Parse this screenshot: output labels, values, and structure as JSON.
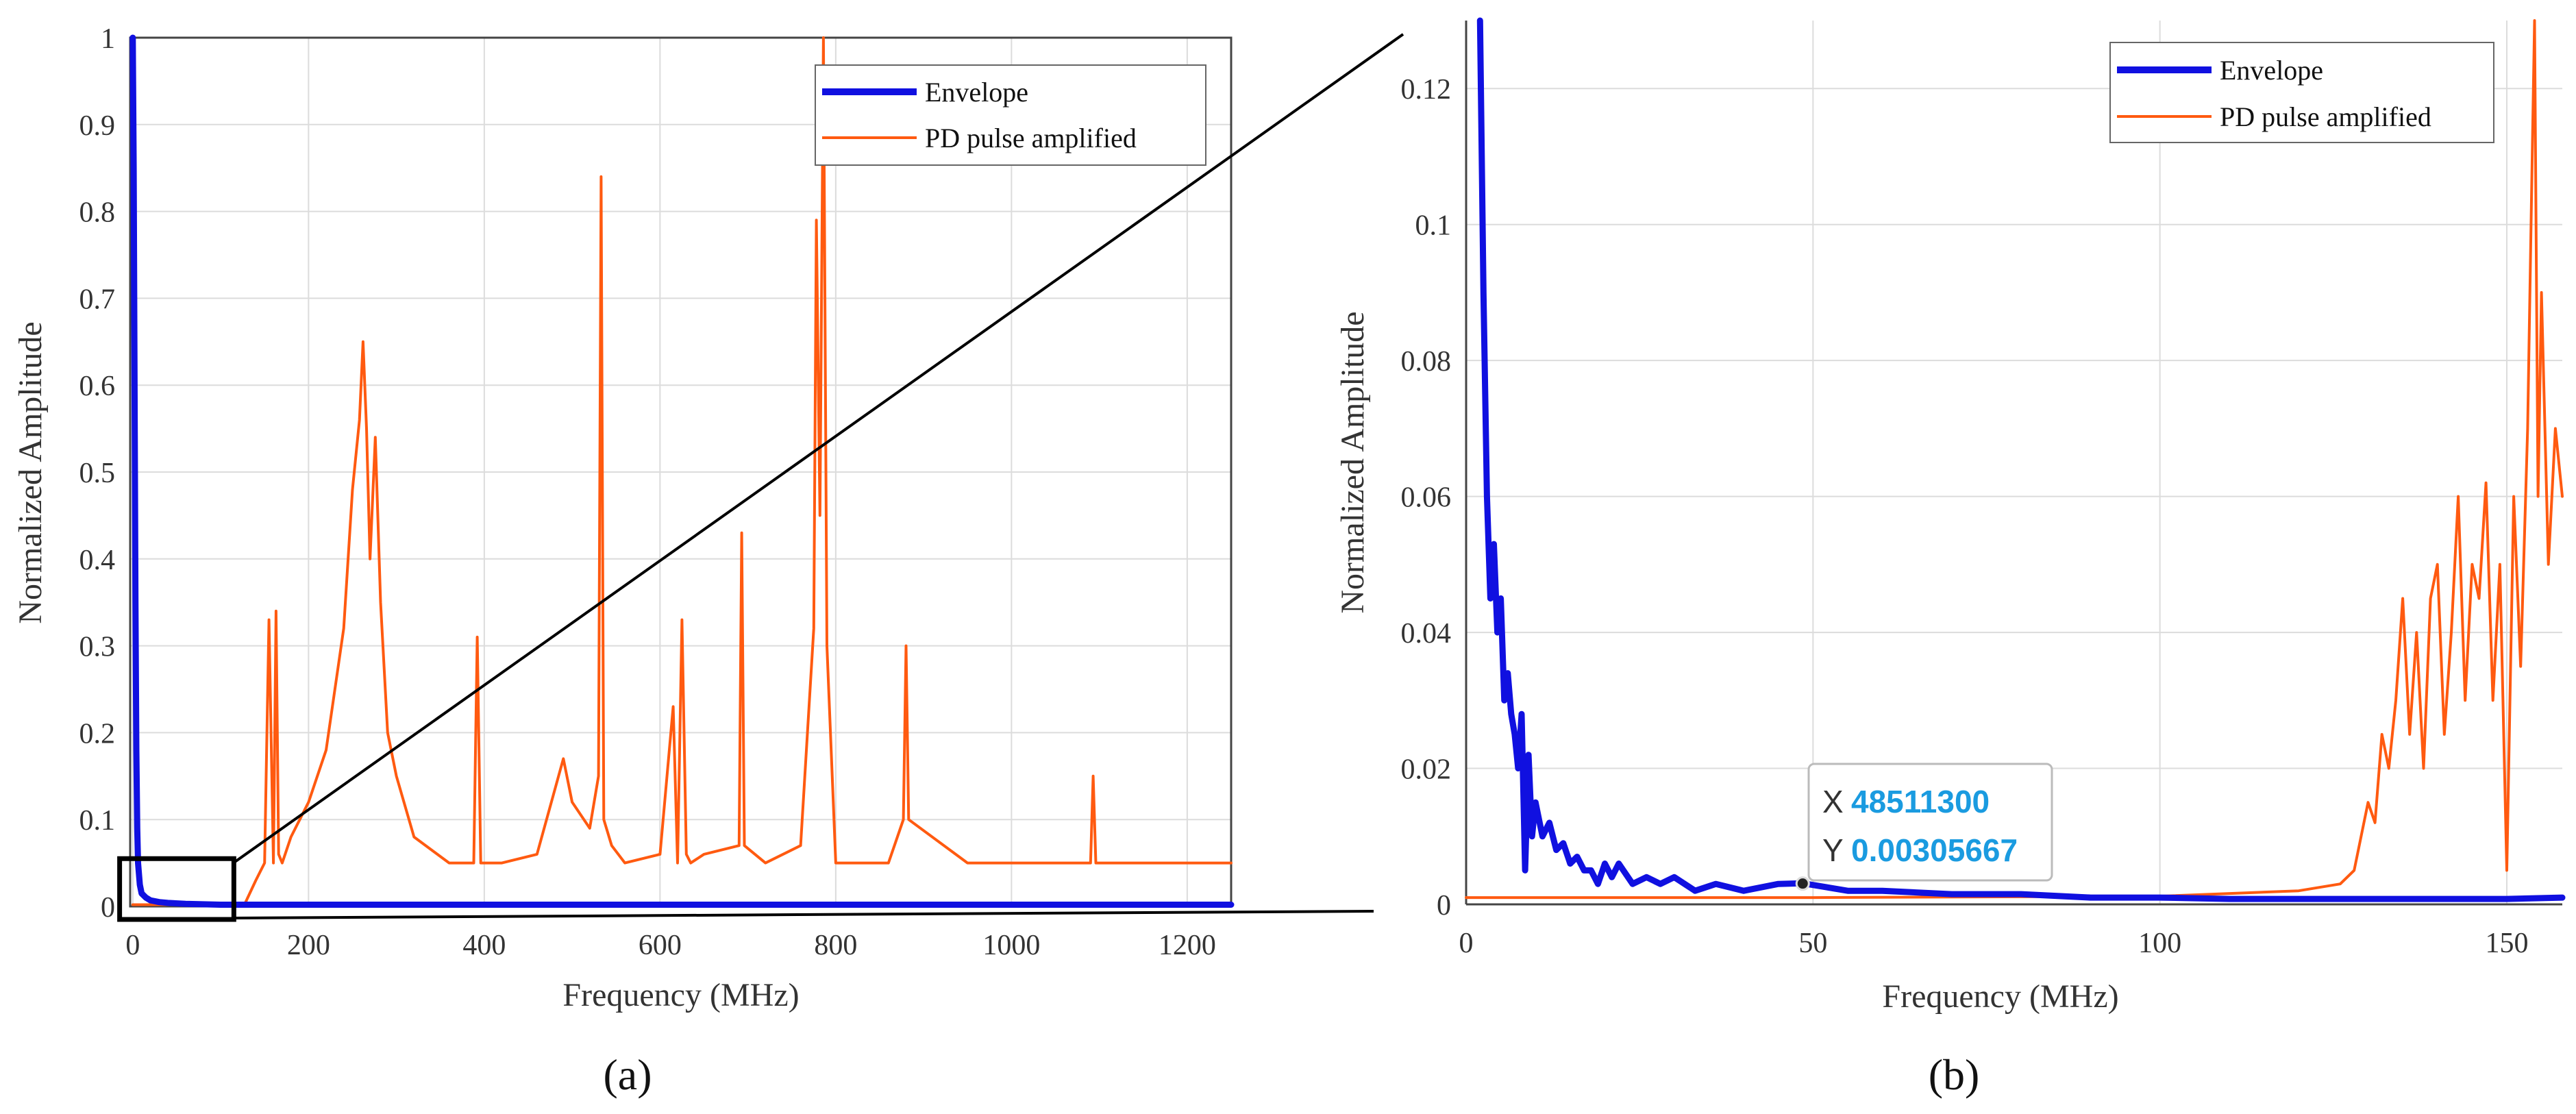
{
  "colors": {
    "envelope": "#1010e0",
    "pd_pulse": "#ff5a10",
    "grid": "#dcdcdc",
    "tooltip_value": "#1a9be0"
  },
  "chart_data": [
    {
      "type": "line",
      "panel_label": "(a)",
      "xlabel": "Frequency (MHz)",
      "ylabel": "Normalized Amplitude",
      "xlim": [
        -3,
        1250
      ],
      "ylim": [
        0,
        1
      ],
      "x_ticks": [
        0,
        200,
        400,
        600,
        800,
        1000,
        1200
      ],
      "x_tick_labels": [
        "0",
        "200",
        "400",
        "600",
        "800",
        "1000",
        "1200"
      ],
      "y_ticks": [
        0,
        0.1,
        0.2,
        0.3,
        0.4,
        0.5,
        0.6,
        0.7,
        0.8,
        0.9,
        1
      ],
      "y_tick_labels": [
        "0",
        "0.1",
        "0.2",
        "0.3",
        "0.4",
        "0.5",
        "0.6",
        "0.7",
        "0.8",
        "0.9",
        "1"
      ],
      "grid": true,
      "legend": "top-right",
      "zoom_region": {
        "x": [
          -15,
          115
        ],
        "y": [
          -0.015,
          0.055
        ]
      },
      "series": [
        {
          "name": "Envelope",
          "x": [
            0,
            1,
            2,
            3,
            4,
            5,
            6,
            8,
            10,
            15,
            20,
            30,
            40,
            60,
            100,
            150,
            200,
            400,
            800,
            1250
          ],
          "y": [
            1.0,
            0.85,
            0.6,
            0.35,
            0.18,
            0.09,
            0.05,
            0.025,
            0.015,
            0.01,
            0.007,
            0.005,
            0.004,
            0.003,
            0.002,
            0.002,
            0.002,
            0.002,
            0.002,
            0.002
          ]
        },
        {
          "name": "PD pulse amplified",
          "x": [
            0,
            100,
            128,
            140,
            150,
            155,
            160,
            163,
            166,
            170,
            180,
            200,
            220,
            240,
            250,
            258,
            262,
            266,
            270,
            276,
            282,
            290,
            300,
            320,
            360,
            388,
            392,
            396,
            420,
            460,
            490,
            500,
            520,
            530,
            533,
            536,
            545,
            560,
            600,
            615,
            620,
            625,
            630,
            635,
            650,
            690,
            693,
            696,
            720,
            760,
            775,
            778,
            782,
            786,
            790,
            800,
            860,
            877,
            880,
            883,
            950,
            1090,
            1093,
            1096,
            1150,
            1250
          ],
          "y": [
            0.002,
            0.002,
            0.004,
            0.03,
            0.05,
            0.33,
            0.05,
            0.34,
            0.06,
            0.05,
            0.08,
            0.12,
            0.18,
            0.32,
            0.48,
            0.56,
            0.65,
            0.55,
            0.4,
            0.54,
            0.35,
            0.2,
            0.15,
            0.08,
            0.05,
            0.05,
            0.31,
            0.05,
            0.05,
            0.06,
            0.17,
            0.12,
            0.09,
            0.15,
            0.84,
            0.1,
            0.07,
            0.05,
            0.06,
            0.23,
            0.05,
            0.33,
            0.06,
            0.05,
            0.06,
            0.07,
            0.43,
            0.07,
            0.05,
            0.07,
            0.32,
            0.79,
            0.45,
            1.0,
            0.3,
            0.05,
            0.05,
            0.1,
            0.3,
            0.1,
            0.05,
            0.05,
            0.15,
            0.05,
            0.05,
            0.05
          ]
        }
      ]
    },
    {
      "type": "line",
      "panel_label": "(b)",
      "xlabel": "Frequency (MHz)",
      "ylabel": "Normalized Amplitude",
      "xlim": [
        0,
        158
      ],
      "ylim": [
        0,
        0.13
      ],
      "x_ticks": [
        0,
        50,
        100,
        150
      ],
      "x_tick_labels": [
        "0",
        "50",
        "100",
        "150"
      ],
      "y_ticks": [
        0,
        0.02,
        0.04,
        0.06,
        0.08,
        0.1,
        0.12
      ],
      "y_tick_labels": [
        "0",
        "0.02",
        "0.04",
        "0.06",
        "0.08",
        "0.1",
        "0.12"
      ],
      "grid": true,
      "legend": "top-right",
      "series": [
        {
          "name": "Envelope",
          "x": [
            2,
            2.5,
            3,
            3.5,
            4,
            4.5,
            5,
            5.5,
            6,
            6.5,
            7,
            7.5,
            8,
            8.5,
            9,
            9.5,
            10,
            11,
            12,
            13,
            14,
            15,
            16,
            17,
            18,
            19,
            20,
            21,
            22,
            24,
            26,
            28,
            30,
            33,
            36,
            40,
            45,
            48.5,
            55,
            60,
            70,
            80,
            90,
            100,
            110,
            120,
            130,
            140,
            150,
            158
          ],
          "y": [
            0.13,
            0.09,
            0.06,
            0.045,
            0.053,
            0.04,
            0.045,
            0.03,
            0.034,
            0.028,
            0.025,
            0.02,
            0.028,
            0.005,
            0.022,
            0.01,
            0.015,
            0.01,
            0.012,
            0.008,
            0.009,
            0.006,
            0.007,
            0.005,
            0.005,
            0.003,
            0.006,
            0.004,
            0.006,
            0.003,
            0.004,
            0.003,
            0.004,
            0.002,
            0.003,
            0.002,
            0.003,
            0.0031,
            0.002,
            0.002,
            0.0015,
            0.0015,
            0.001,
            0.001,
            0.0008,
            0.0008,
            0.0008,
            0.0008,
            0.0008,
            0.001
          ]
        },
        {
          "name": "PD pulse amplified",
          "x": [
            0,
            50,
            100,
            120,
            126,
            128,
            130,
            131,
            132,
            133,
            134,
            135,
            136,
            137,
            138,
            139,
            140,
            141,
            142,
            143,
            144,
            145,
            146,
            147,
            148,
            149,
            150,
            151,
            152,
            153,
            153.5,
            154,
            154.5,
            155,
            156,
            157,
            158
          ],
          "y": [
            0.001,
            0.001,
            0.0012,
            0.002,
            0.003,
            0.005,
            0.015,
            0.012,
            0.025,
            0.02,
            0.03,
            0.045,
            0.025,
            0.04,
            0.02,
            0.045,
            0.05,
            0.025,
            0.04,
            0.06,
            0.03,
            0.05,
            0.045,
            0.062,
            0.03,
            0.05,
            0.005,
            0.06,
            0.035,
            0.07,
            0.1,
            0.13,
            0.06,
            0.09,
            0.05,
            0.07,
            0.06
          ]
        }
      ],
      "tooltip": {
        "x_label": "X",
        "x_value": "48511300",
        "y_label": "Y",
        "y_value": "0.00305667",
        "point": {
          "x": 48.5113,
          "y": 0.00305667
        }
      }
    }
  ]
}
